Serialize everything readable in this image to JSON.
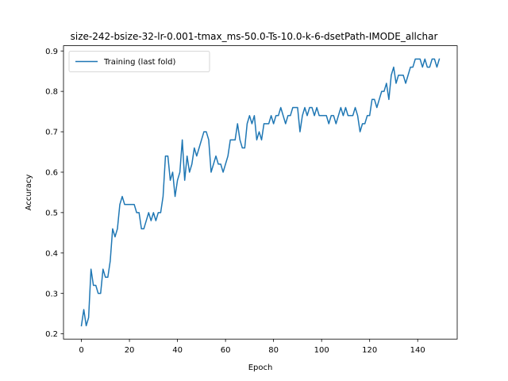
{
  "chart_data": {
    "type": "line",
    "title": "size-242-bsize-32-lr-0.001-tmax_ms-50.0-Ts-10.0-k-6-dsetPath-IMODE_allchar",
    "xlabel": "Epoch",
    "ylabel": "Accuracy",
    "xlim": [
      -7.45,
      156.45
    ],
    "ylim": [
      0.187,
      0.913
    ],
    "xticks": [
      0,
      20,
      40,
      60,
      80,
      100,
      120,
      140
    ],
    "yticks": [
      0.2,
      0.3,
      0.4,
      0.5,
      0.6,
      0.7,
      0.8,
      0.9
    ],
    "xtick_labels": [
      "0",
      "20",
      "40",
      "60",
      "80",
      "100",
      "120",
      "140"
    ],
    "ytick_labels": [
      "0.2",
      "0.3",
      "0.4",
      "0.5",
      "0.6",
      "0.7",
      "0.8",
      "0.9"
    ],
    "grid": false,
    "legend_position": "top-left",
    "series": [
      {
        "name": "Training (last fold)",
        "color": "#1f77b4",
        "values": [
          0.22,
          0.26,
          0.22,
          0.24,
          0.36,
          0.32,
          0.32,
          0.3,
          0.3,
          0.36,
          0.34,
          0.34,
          0.38,
          0.46,
          0.44,
          0.46,
          0.52,
          0.54,
          0.52,
          0.52,
          0.52,
          0.52,
          0.52,
          0.5,
          0.5,
          0.46,
          0.46,
          0.48,
          0.5,
          0.48,
          0.5,
          0.48,
          0.5,
          0.5,
          0.54,
          0.64,
          0.64,
          0.58,
          0.6,
          0.54,
          0.58,
          0.6,
          0.68,
          0.58,
          0.64,
          0.6,
          0.62,
          0.66,
          0.64,
          0.66,
          0.68,
          0.7,
          0.7,
          0.68,
          0.6,
          0.62,
          0.64,
          0.62,
          0.62,
          0.6,
          0.62,
          0.64,
          0.68,
          0.68,
          0.68,
          0.72,
          0.68,
          0.66,
          0.66,
          0.72,
          0.74,
          0.72,
          0.74,
          0.68,
          0.7,
          0.68,
          0.72,
          0.72,
          0.72,
          0.74,
          0.72,
          0.74,
          0.74,
          0.76,
          0.74,
          0.72,
          0.74,
          0.74,
          0.76,
          0.76,
          0.76,
          0.7,
          0.74,
          0.76,
          0.74,
          0.76,
          0.76,
          0.74,
          0.76,
          0.74,
          0.74,
          0.74,
          0.74,
          0.72,
          0.74,
          0.74,
          0.72,
          0.74,
          0.76,
          0.74,
          0.76,
          0.74,
          0.74,
          0.74,
          0.76,
          0.74,
          0.7,
          0.72,
          0.72,
          0.74,
          0.74,
          0.78,
          0.78,
          0.76,
          0.78,
          0.8,
          0.8,
          0.82,
          0.78,
          0.84,
          0.86,
          0.82,
          0.84,
          0.84,
          0.84,
          0.82,
          0.84,
          0.86,
          0.86,
          0.88,
          0.88,
          0.88,
          0.86,
          0.88,
          0.86,
          0.86,
          0.88,
          0.88,
          0.86,
          0.88
        ]
      }
    ]
  }
}
